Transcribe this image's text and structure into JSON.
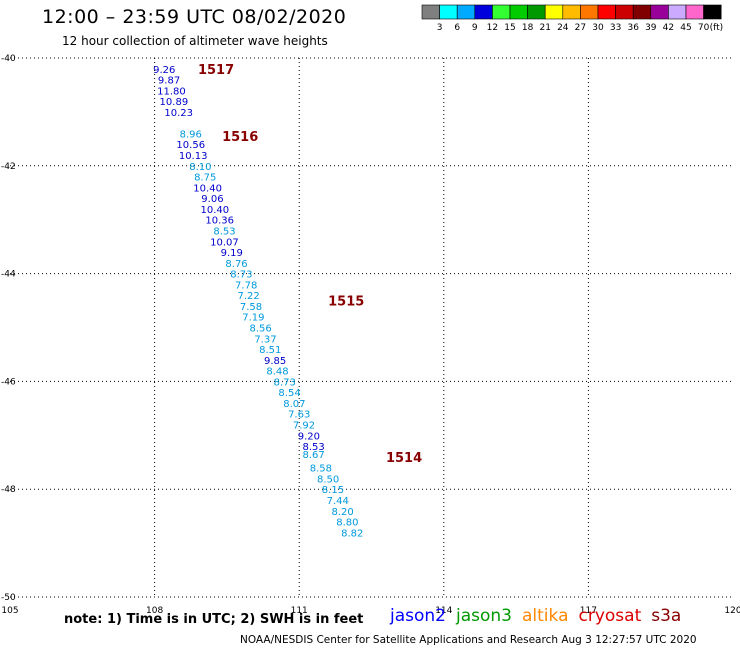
{
  "header": {
    "title": "12:00 – 23:59 UTC 08/02/2020",
    "subtitle": "12 hour collection of altimeter wave heights"
  },
  "colorbar": {
    "unit": "(ft)",
    "bins": [
      {
        "label": "3",
        "color": "#7f7f7f"
      },
      {
        "label": "6",
        "color": "#00ffff"
      },
      {
        "label": "9",
        "color": "#00aaff"
      },
      {
        "label": "12",
        "color": "#0000dd"
      },
      {
        "label": "15",
        "color": "#33ff33"
      },
      {
        "label": "18",
        "color": "#00cc00"
      },
      {
        "label": "21",
        "color": "#009900"
      },
      {
        "label": "24",
        "color": "#ffff00"
      },
      {
        "label": "27",
        "color": "#ffbb00"
      },
      {
        "label": "30",
        "color": "#ff7700"
      },
      {
        "label": "33",
        "color": "#ff0000"
      },
      {
        "label": "36",
        "color": "#cc0000"
      },
      {
        "label": "39",
        "color": "#800000"
      },
      {
        "label": "42",
        "color": "#990099"
      },
      {
        "label": "45",
        "color": "#ccaaff"
      },
      {
        "label": "70",
        "color": "#ff66cc"
      },
      {
        "label": "",
        "color": "#000000"
      }
    ]
  },
  "map": {
    "lon_range": [
      105,
      120
    ],
    "lat_range": [
      -50,
      -40
    ],
    "lon_ticks": [
      "105",
      "108",
      "111",
      "114",
      "117",
      "120"
    ],
    "lat_ticks": [
      "-40",
      "-42",
      "-44",
      "-46",
      "-48",
      "-50"
    ],
    "grid": "dotted"
  },
  "chart_data": {
    "type": "scatter",
    "x_axis": "longitude",
    "y_axis": "latitude",
    "points": [
      {
        "lon": 108.2,
        "lat": -40.2,
        "value": "9.26",
        "color": "#0000cc"
      },
      {
        "lon": 108.3,
        "lat": -40.4,
        "value": "9.87",
        "color": "#0000cc"
      },
      {
        "lon": 108.35,
        "lat": -40.6,
        "value": "11.80",
        "color": "#0000cc"
      },
      {
        "lon": 108.4,
        "lat": -40.8,
        "value": "10.89",
        "color": "#0000cc"
      },
      {
        "lon": 108.5,
        "lat": -41.0,
        "value": "10.23",
        "color": "#0000cc"
      },
      {
        "lon": 108.75,
        "lat": -41.4,
        "value": "8.96",
        "color": "#0099dd"
      },
      {
        "lon": 108.75,
        "lat": -41.6,
        "value": "10.56",
        "color": "#0000cc"
      },
      {
        "lon": 108.8,
        "lat": -41.8,
        "value": "10.13",
        "color": "#0000cc"
      },
      {
        "lon": 108.95,
        "lat": -42.0,
        "value": "8.10",
        "color": "#0099dd"
      },
      {
        "lon": 109.05,
        "lat": -42.2,
        "value": "8.75",
        "color": "#0099dd"
      },
      {
        "lon": 109.1,
        "lat": -42.4,
        "value": "10.40",
        "color": "#0000cc"
      },
      {
        "lon": 109.2,
        "lat": -42.6,
        "value": "9.06",
        "color": "#0000cc"
      },
      {
        "lon": 109.25,
        "lat": -42.8,
        "value": "10.40",
        "color": "#0000cc"
      },
      {
        "lon": 109.35,
        "lat": -43.0,
        "value": "10.36",
        "color": "#0000cc"
      },
      {
        "lon": 109.45,
        "lat": -43.2,
        "value": "8.53",
        "color": "#0099dd"
      },
      {
        "lon": 109.45,
        "lat": -43.4,
        "value": "10.07",
        "color": "#0000cc"
      },
      {
        "lon": 109.6,
        "lat": -43.6,
        "value": "9.19",
        "color": "#0000cc"
      },
      {
        "lon": 109.7,
        "lat": -43.8,
        "value": "8.76",
        "color": "#0099dd"
      },
      {
        "lon": 109.8,
        "lat": -44.0,
        "value": "8.73",
        "color": "#0099dd"
      },
      {
        "lon": 109.9,
        "lat": -44.2,
        "value": "7.78",
        "color": "#0099dd"
      },
      {
        "lon": 109.95,
        "lat": -44.4,
        "value": "7.22",
        "color": "#0099dd"
      },
      {
        "lon": 110.0,
        "lat": -44.6,
        "value": "7.58",
        "color": "#0099dd"
      },
      {
        "lon": 110.05,
        "lat": -44.8,
        "value": "7.19",
        "color": "#0099dd"
      },
      {
        "lon": 110.2,
        "lat": -45.0,
        "value": "8.56",
        "color": "#0099dd"
      },
      {
        "lon": 110.3,
        "lat": -45.2,
        "value": "7.37",
        "color": "#0099dd"
      },
      {
        "lon": 110.4,
        "lat": -45.4,
        "value": "8.51",
        "color": "#0099dd"
      },
      {
        "lon": 110.5,
        "lat": -45.6,
        "value": "9.85",
        "color": "#0000cc"
      },
      {
        "lon": 110.55,
        "lat": -45.8,
        "value": "8.48",
        "color": "#0099dd"
      },
      {
        "lon": 110.7,
        "lat": -46.0,
        "value": "8.73",
        "color": "#0099dd"
      },
      {
        "lon": 110.8,
        "lat": -46.2,
        "value": "8.54",
        "color": "#0099dd"
      },
      {
        "lon": 110.9,
        "lat": -46.4,
        "value": "8.07",
        "color": "#0099dd"
      },
      {
        "lon": 111.0,
        "lat": -46.6,
        "value": "7.63",
        "color": "#0099dd"
      },
      {
        "lon": 111.1,
        "lat": -46.8,
        "value": "7.92",
        "color": "#0099dd"
      },
      {
        "lon": 111.2,
        "lat": -47.0,
        "value": "9.20",
        "color": "#0000cc"
      },
      {
        "lon": 111.3,
        "lat": -47.2,
        "value": "8.53",
        "color": "#0000cc"
      },
      {
        "lon": 111.3,
        "lat": -47.35,
        "value": "8.67",
        "color": "#0099dd"
      },
      {
        "lon": 111.45,
        "lat": -47.6,
        "value": "8.58",
        "color": "#0099dd"
      },
      {
        "lon": 111.6,
        "lat": -47.8,
        "value": "8.50",
        "color": "#0099dd"
      },
      {
        "lon": 111.7,
        "lat": -48.0,
        "value": "8.15",
        "color": "#0099dd"
      },
      {
        "lon": 111.8,
        "lat": -48.2,
        "value": "7.44",
        "color": "#0099dd"
      },
      {
        "lon": 111.9,
        "lat": -48.4,
        "value": "8.20",
        "color": "#0099dd"
      },
      {
        "lon": 112.0,
        "lat": -48.6,
        "value": "8.80",
        "color": "#0099dd"
      },
      {
        "lon": 112.1,
        "lat": -48.8,
        "value": "8.82",
        "color": "#0099dd"
      }
    ],
    "pass_labels": [
      {
        "text": "1517",
        "lon": 108.9,
        "lat": -40.2
      },
      {
        "text": "1516",
        "lon": 109.4,
        "lat": -41.45
      },
      {
        "text": "1515",
        "lon": 111.6,
        "lat": -44.5
      },
      {
        "text": "1514",
        "lon": 112.8,
        "lat": -47.4
      }
    ]
  },
  "footer": {
    "note": "note:  1) Time is in UTC;  2) SWH is in feet",
    "credit": "NOAA/NESDIS Center for Satellite Applications and Research     Aug  3 12:27:57 UTC 2020",
    "missions": [
      {
        "name": "jason2",
        "color": "#0000ff"
      },
      {
        "name": "jason3",
        "color": "#009900"
      },
      {
        "name": "altika",
        "color": "#ff8800"
      },
      {
        "name": "cryosat",
        "color": "#dd0000"
      },
      {
        "name": "s3a",
        "color": "#880000"
      }
    ],
    "pass_label_color": "#880000"
  }
}
